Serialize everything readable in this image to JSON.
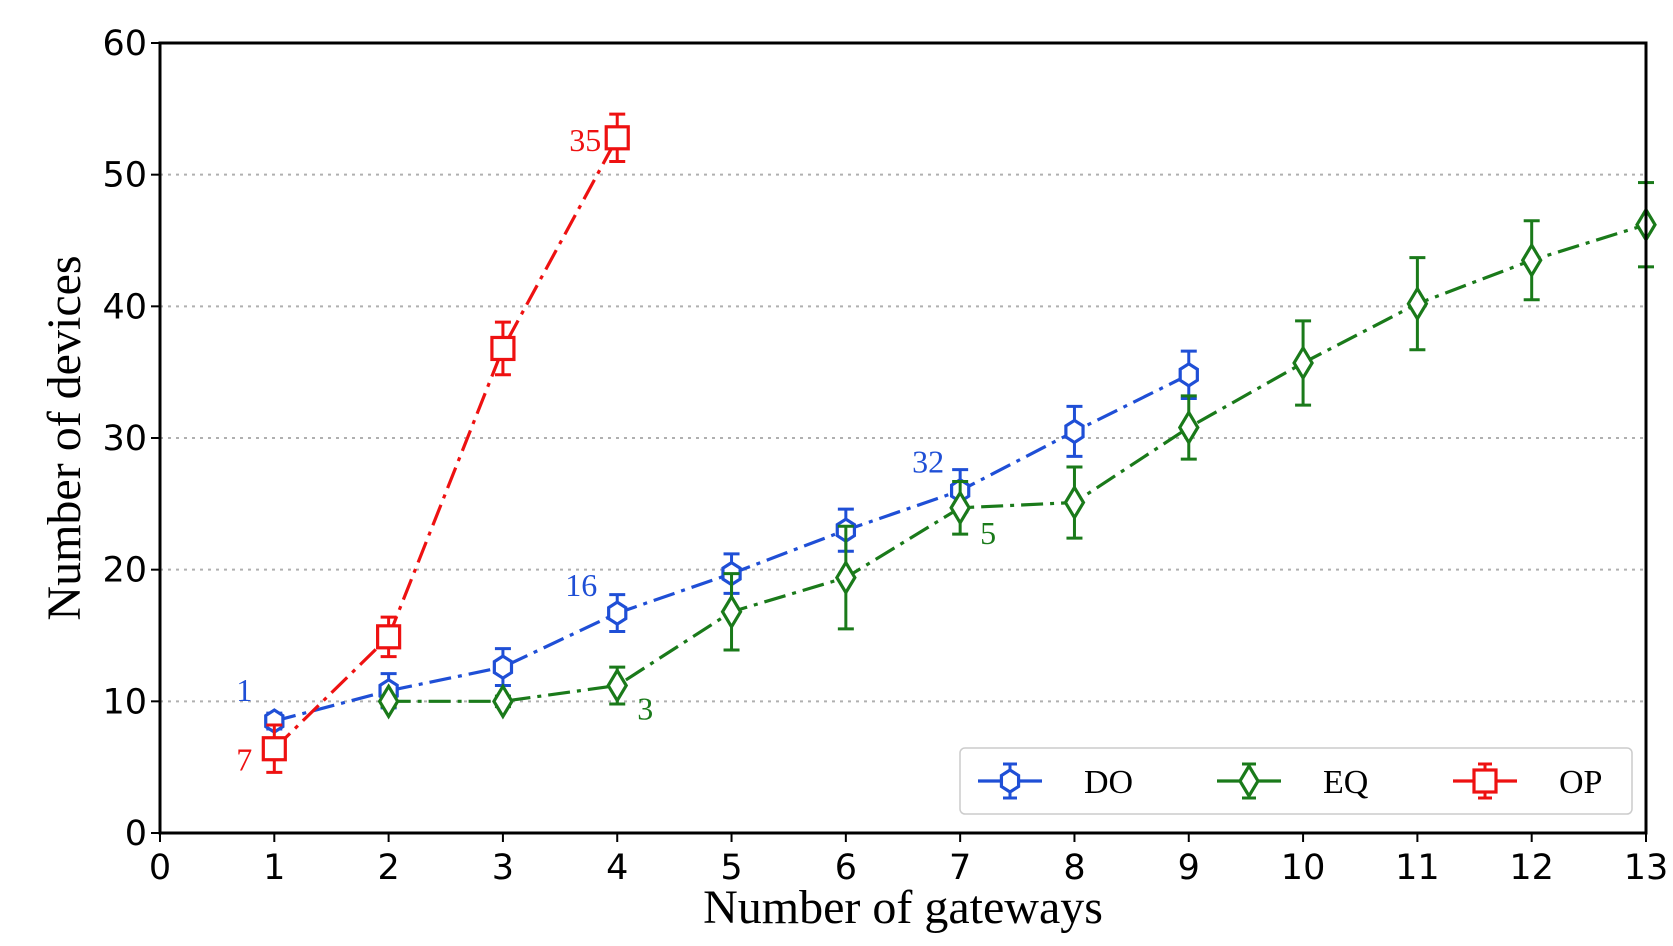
{
  "chart_data": {
    "type": "line",
    "xlabel": "Number of gateways",
    "ylabel": "Number of devices",
    "xlim": [
      0,
      13
    ],
    "ylim": [
      0,
      60
    ],
    "xticks": [
      "0",
      "1",
      "2",
      "3",
      "4",
      "5",
      "6",
      "7",
      "8",
      "9",
      "10",
      "11",
      "12",
      "13"
    ],
    "yticks": [
      "0",
      "10",
      "20",
      "30",
      "40",
      "50",
      "60"
    ],
    "grid": "horizontal dotted",
    "legend_position": "bottom-right",
    "series": [
      {
        "name": "DO",
        "color": "#1f4fd6",
        "marker": "hexagon",
        "line_style": "dash-dot",
        "x": [
          1,
          2,
          3,
          4,
          5,
          6,
          7,
          8,
          9
        ],
        "y": [
          8.5,
          10.8,
          12.6,
          16.7,
          19.7,
          23.0,
          26.0,
          30.5,
          34.8
        ],
        "err": [
          0.6,
          1.3,
          1.4,
          1.4,
          1.5,
          1.6,
          1.6,
          1.9,
          1.8
        ]
      },
      {
        "name": "EQ",
        "color": "#1a7a1a",
        "marker": "diamond",
        "line_style": "dash-dot",
        "x": [
          2,
          3,
          4,
          5,
          6,
          7,
          8,
          9,
          10,
          11,
          12,
          13
        ],
        "y": [
          10.0,
          10.0,
          11.2,
          16.8,
          19.4,
          24.7,
          25.1,
          30.8,
          35.7,
          40.2,
          43.5,
          46.2
        ],
        "err": [
          0.4,
          0.4,
          1.4,
          2.9,
          3.9,
          2.0,
          2.7,
          2.4,
          3.2,
          3.5,
          3.0,
          3.2
        ]
      },
      {
        "name": "OP",
        "color": "#ee1111",
        "marker": "square",
        "line_style": "dash-dot",
        "x": [
          1,
          2,
          3,
          4
        ],
        "y": [
          6.4,
          14.9,
          36.8,
          52.8
        ],
        "err": [
          1.8,
          1.5,
          2.0,
          1.8
        ]
      }
    ],
    "annotations": [
      {
        "text": "1",
        "series": "DO",
        "x": 1
      },
      {
        "text": "7",
        "series": "OP",
        "x": 1
      },
      {
        "text": "16",
        "series": "DO",
        "x": 4
      },
      {
        "text": "3",
        "series": "EQ",
        "x": 4
      },
      {
        "text": "35",
        "series": "OP",
        "x": 4
      },
      {
        "text": "32",
        "series": "DO",
        "x": 7
      },
      {
        "text": "5",
        "series": "EQ",
        "x": 7
      }
    ]
  }
}
